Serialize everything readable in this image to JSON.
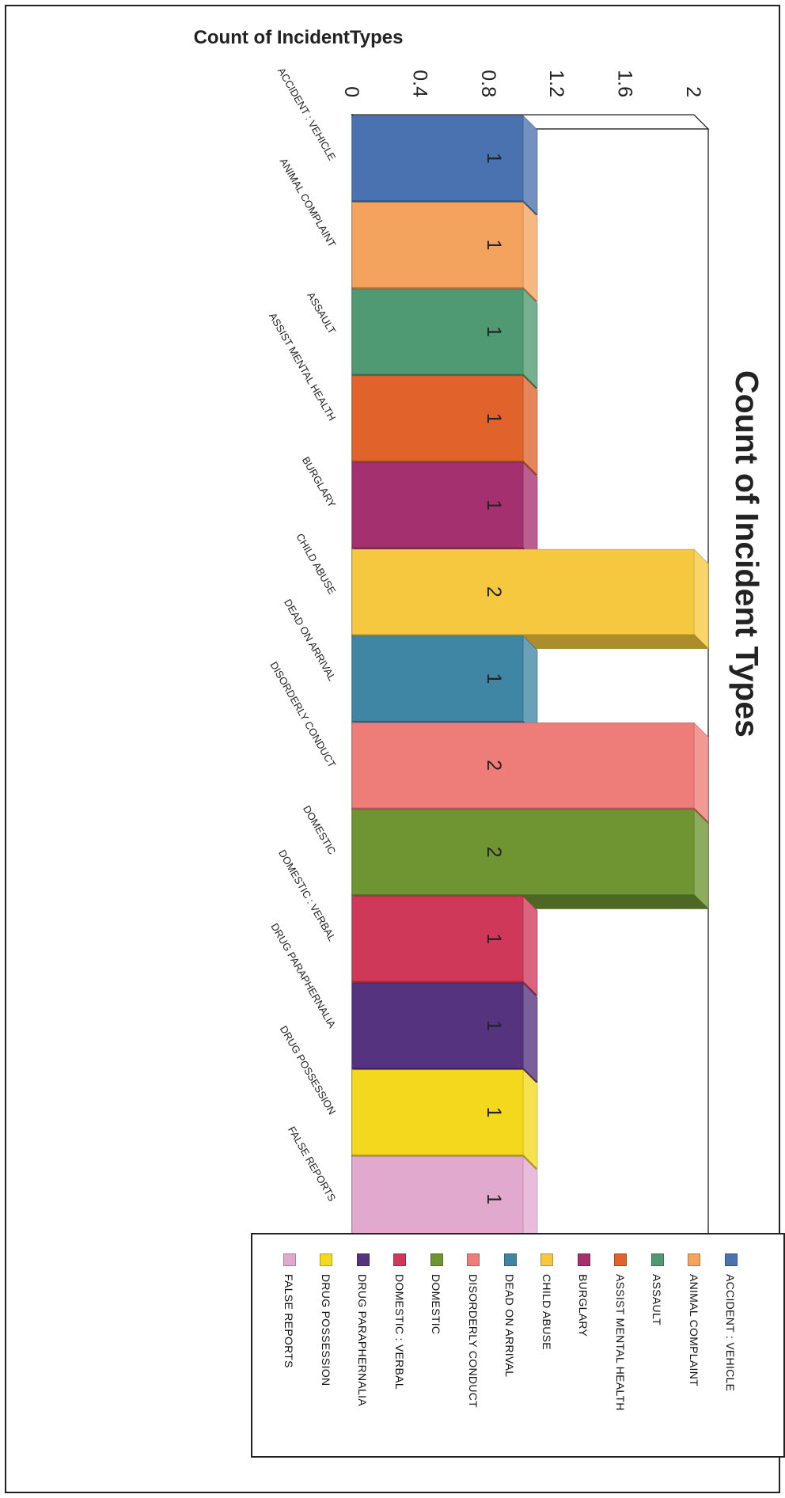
{
  "chart_data": {
    "type": "bar",
    "title": "Count of Incident Types",
    "ylabel": "Count of IncidentTypes",
    "xlabel": "",
    "ylim": [
      0,
      2
    ],
    "yticks": [
      "0",
      "0.4",
      "0.8",
      "1.2",
      "1.6",
      "2"
    ],
    "categories": [
      "ACCIDENT : VEHICLE",
      "ANIMAL COMPLAINT",
      "ASSAULT",
      "ASSIST MENTAL HEALTH",
      "BURGLARY",
      "CHILD ABUSE",
      "DEAD ON ARRIVAL",
      "DISORDERLY CONDUCT",
      "DOMESTIC",
      "DOMESTIC : VERBAL",
      "DRUG PARAPHERNALIA",
      "DRUG POSSESSION",
      "FALSE REPORTS"
    ],
    "values": [
      1,
      1,
      1,
      1,
      1,
      2,
      1,
      2,
      2,
      1,
      1,
      1,
      1
    ],
    "data_labels": [
      "1",
      "1",
      "1",
      "1",
      "1",
      "2",
      "1",
      "2",
      "2",
      "1",
      "1",
      "1",
      "1"
    ],
    "colors": [
      "#4a72b0",
      "#f4a35e",
      "#4f9a72",
      "#e0632c",
      "#a53070",
      "#f6c83f",
      "#3f86a5",
      "#ee7c79",
      "#6e9531",
      "#d0385a",
      "#55337e",
      "#f3d81d",
      "#e2a9cf"
    ],
    "legend": {
      "placement": "right",
      "entries": [
        "ACCIDENT : VEHICLE",
        "ANIMAL COMPLAINT",
        "ASSAULT",
        "ASSIST MENTAL HEALTH",
        "BURGLARY",
        "CHILD ABUSE",
        "DEAD ON ARRIVAL",
        "DISORDERLY CONDUCT",
        "DOMESTIC",
        "DOMESTIC : VERBAL",
        "DRUG PARAPHERNALIA",
        "DRUG POSSESSION",
        "FALSE REPORTS"
      ]
    },
    "grid": false,
    "style": "3d"
  }
}
